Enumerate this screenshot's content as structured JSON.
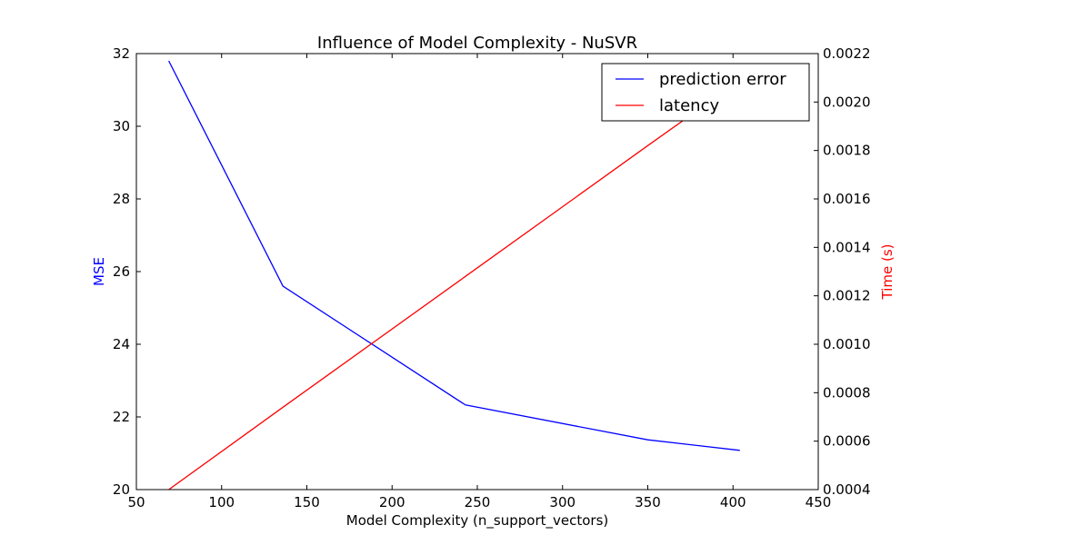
{
  "chart_data": {
    "type": "line",
    "title": "Influence of Model Complexity - NuSVR",
    "xlabel": "Model Complexity (n_support_vectors)",
    "ylabel_left": "MSE",
    "ylabel_right": "Time (s)",
    "xlim": [
      50,
      450
    ],
    "ylim_left": [
      20,
      32
    ],
    "ylim_right": [
      0.0004,
      0.0022
    ],
    "x_ticks": [
      "50",
      "100",
      "150",
      "200",
      "250",
      "300",
      "350",
      "400",
      "450"
    ],
    "y_left_ticks": [
      "20",
      "22",
      "24",
      "26",
      "28",
      "30",
      "32"
    ],
    "y_right_ticks": [
      "0.0004",
      "0.0006",
      "0.0008",
      "0.0010",
      "0.0012",
      "0.0014",
      "0.0016",
      "0.0018",
      "0.0020",
      "0.0022"
    ],
    "grid": false,
    "legend_position": "top-right",
    "series": [
      {
        "name": "prediction error",
        "axis": "left",
        "color": "#0000ff",
        "x": [
          69,
          136,
          243,
          350,
          404
        ],
        "y": [
          31.8,
          25.6,
          22.33,
          21.37,
          21.08
        ]
      },
      {
        "name": "latency",
        "axis": "right",
        "color": "#ff0000",
        "x": [
          69,
          136,
          243,
          350,
          404
        ],
        "y": [
          0.0004,
          0.00074,
          0.00128,
          0.00182,
          0.00209
        ]
      }
    ]
  }
}
